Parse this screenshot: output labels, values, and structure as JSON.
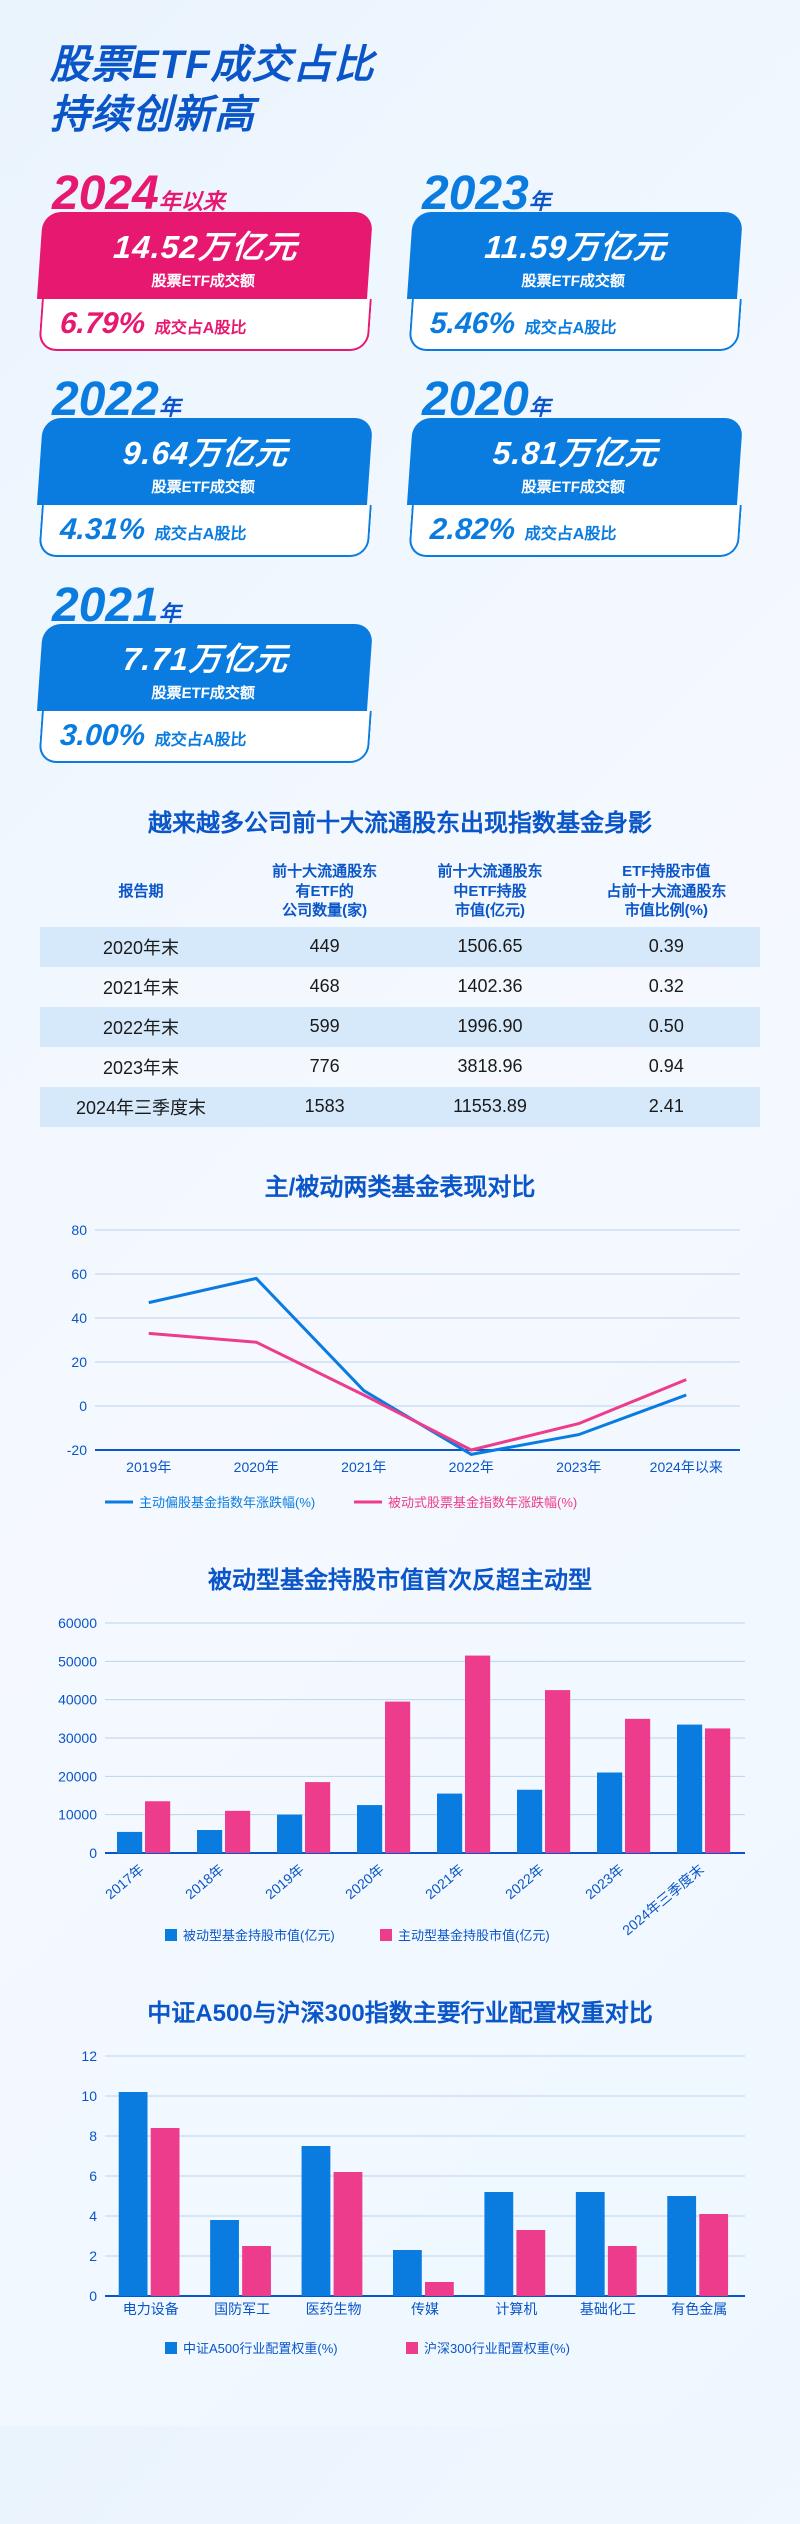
{
  "title_line1": "股票ETF成交占比",
  "title_line2": "持续创新高",
  "cards": [
    {
      "year": "2024",
      "year_suffix": "年以来",
      "top_val": "14.52万亿元",
      "top_lbl": "股票ETF成交额",
      "bot_val": "6.79%",
      "bot_lbl": "成交占A股比",
      "variant": "pink"
    },
    {
      "year": "2023",
      "year_suffix": "年",
      "top_val": "11.59万亿元",
      "top_lbl": "股票ETF成交额",
      "bot_val": "5.46%",
      "bot_lbl": "成交占A股比",
      "variant": "blue"
    },
    {
      "year": "2022",
      "year_suffix": "年",
      "top_val": "9.64万亿元",
      "top_lbl": "股票ETF成交额",
      "bot_val": "4.31%",
      "bot_lbl": "成交占A股比",
      "variant": "blue"
    },
    {
      "year": "2020",
      "year_suffix": "年",
      "top_val": "5.81万亿元",
      "top_lbl": "股票ETF成交额",
      "bot_val": "2.82%",
      "bot_lbl": "成交占A股比",
      "variant": "blue"
    },
    {
      "year": "2021",
      "year_suffix": "年",
      "top_val": "7.71万亿元",
      "top_lbl": "股票ETF成交额",
      "bot_val": "3.00%",
      "bot_lbl": "成交占A股比",
      "variant": "blue"
    }
  ],
  "table": {
    "title": "越来越多公司前十大流通股东出现指数基金身影",
    "columns": [
      "报告期",
      "前十大流通股东\n有ETF的\n公司数量(家)",
      "前十大流通股东\n中ETF持股\n市值(亿元)",
      "ETF持股市值\n占前十大流通股东\n市值比例(%)"
    ],
    "rows": [
      [
        "2020年末",
        "449",
        "1506.65",
        "0.39"
      ],
      [
        "2021年末",
        "468",
        "1402.36",
        "0.32"
      ],
      [
        "2022年末",
        "599",
        "1996.90",
        "0.50"
      ],
      [
        "2023年末",
        "776",
        "3818.96",
        "0.94"
      ],
      [
        "2024年三季度末",
        "1583",
        "11553.89",
        "2.41"
      ]
    ]
  },
  "line_chart": {
    "type": "line",
    "title": "主/被动两类基金表现对比",
    "categories": [
      "2019年",
      "2020年",
      "2021年",
      "2022年",
      "2023年",
      "2024年以来"
    ],
    "series": [
      {
        "name": "主动偏股基金指数年涨跌幅(%)",
        "color": "#0a7ce0",
        "values": [
          47,
          58,
          7,
          -22,
          -13,
          5
        ],
        "line_width": 3
      },
      {
        "name": "被动式股票基金指数年涨跌幅(%)",
        "color": "#ed3c8b",
        "values": [
          33,
          29,
          5,
          -20,
          -8,
          12
        ],
        "line_width": 3
      }
    ],
    "ylim": [
      -20,
      80
    ],
    "ytick_step": 20,
    "grid_color": "#b8d4ef",
    "axis_color": "#0a56c8",
    "label_fontsize": 14,
    "legend_fontsize": 13
  },
  "bar_chart": {
    "type": "bar",
    "title": "被动型基金持股市值首次反超主动型",
    "categories": [
      "2017年",
      "2018年",
      "2019年",
      "2020年",
      "2021年",
      "2022年",
      "2023年",
      "2024年三季度末"
    ],
    "series": [
      {
        "name": "被动型基金持股市值(亿元)",
        "color": "#0a7ce0",
        "values": [
          5500,
          6000,
          10000,
          12500,
          15500,
          16500,
          21000,
          33500
        ]
      },
      {
        "name": "主动型基金持股市值(亿元)",
        "color": "#ed3c8b",
        "values": [
          13500,
          11000,
          18500,
          39500,
          51500,
          42500,
          35000,
          32500
        ]
      }
    ],
    "ylim": [
      0,
      60000
    ],
    "ytick_step": 10000,
    "grid_color": "#b8d4ef",
    "axis_color": "#0a56c8",
    "bar_width": 0.35,
    "label_fontsize": 14,
    "legend_fontsize": 13
  },
  "sector_chart": {
    "type": "bar",
    "title": "中证A500与沪深300指数主要行业配置权重对比",
    "categories": [
      "电力设备",
      "国防军工",
      "医药生物",
      "传媒",
      "计算机",
      "基础化工",
      "有色金属"
    ],
    "series": [
      {
        "name": "中证A500行业配置权重(%)",
        "color": "#0a7ce0",
        "values": [
          10.2,
          3.8,
          7.5,
          2.3,
          5.2,
          5.2,
          5.0
        ]
      },
      {
        "name": "沪深300行业配置权重(%)",
        "color": "#ed3c8b",
        "values": [
          8.4,
          2.5,
          6.2,
          0.7,
          3.3,
          2.5,
          4.1
        ]
      }
    ],
    "ylim": [
      0,
      12
    ],
    "ytick_step": 2,
    "grid_color": "#b8d4ef",
    "axis_color": "#0a56c8",
    "bar_width": 0.35,
    "label_fontsize": 14,
    "legend_fontsize": 13
  }
}
